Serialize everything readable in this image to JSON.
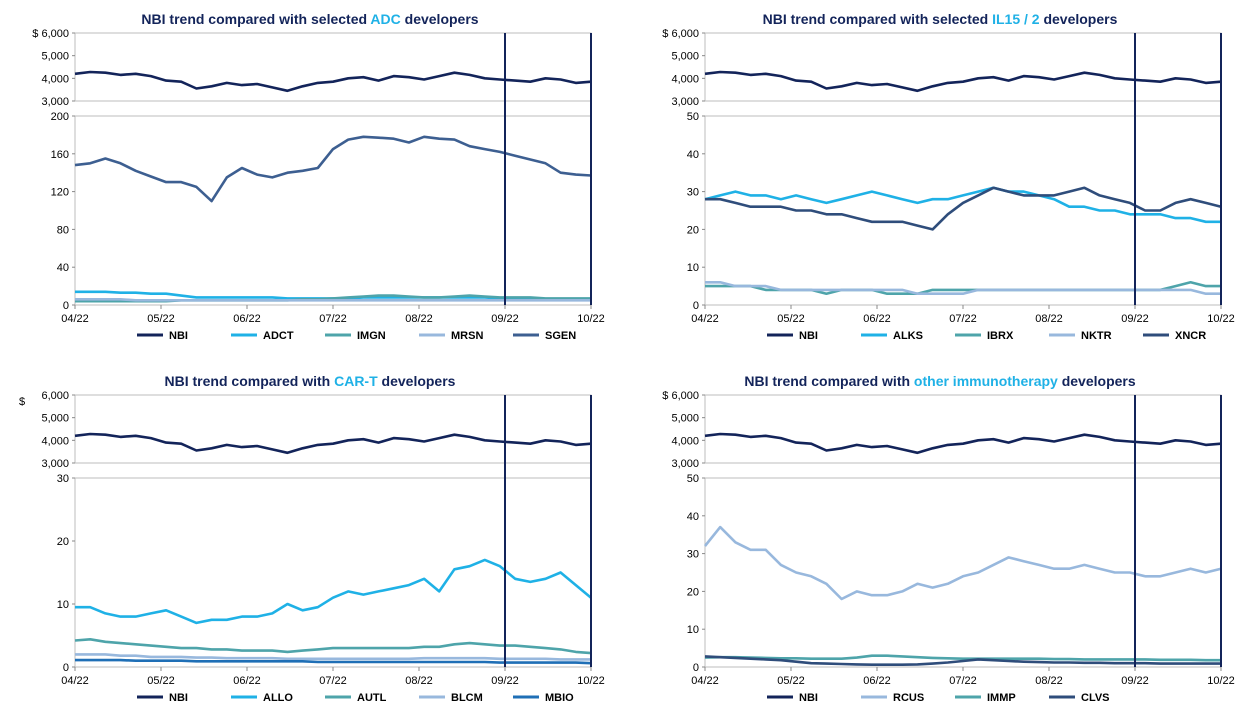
{
  "colors": {
    "nbi": "#13245a",
    "vline": "#13245a",
    "highlight": "#1fb1e6"
  },
  "chart_data": [
    {
      "id": "adc",
      "type": "line",
      "title_pre": "NBI trend compared with selected ",
      "title_hl": "ADC",
      "title_post": " developers",
      "x_ticks": [
        "04/22",
        "05/22",
        "06/22",
        "07/22",
        "08/22",
        "09/22",
        "10/22"
      ],
      "vlines": [
        "09/22",
        "10/22"
      ],
      "top_panel": {
        "ylim": [
          3000,
          6000
        ],
        "y_ticks": [
          "$ 6,000",
          "5,000",
          "4,000",
          "3,000"
        ],
        "series": [
          {
            "name": "NBI",
            "color": "#13245a",
            "values": [
              4200,
              4280,
              4250,
              4150,
              4200,
              4100,
              3900,
              3850,
              3550,
              3650,
              3800,
              3700,
              3750,
              3600,
              3450,
              3650,
              3800,
              3850,
              4000,
              4050,
              3900,
              4100,
              4050,
              3950,
              4100,
              4250,
              4150,
              4000,
              3950,
              3900,
              3850,
              4000,
              3950,
              3800,
              3850
            ]
          }
        ]
      },
      "bottom_panel": {
        "ylim": [
          0,
          200
        ],
        "y_ticks": [
          "200",
          "160",
          "120",
          "80",
          "40",
          "0"
        ],
        "series": [
          {
            "name": "ADCT",
            "color": "#1fb1e6",
            "values": [
              14,
              14,
              14,
              13,
              13,
              12,
              12,
              10,
              8,
              8,
              8,
              8,
              8,
              8,
              7,
              7,
              7,
              7,
              7,
              8,
              8,
              8,
              8,
              8,
              8,
              8,
              8,
              8,
              7,
              7,
              7,
              6,
              6,
              6,
              6
            ]
          },
          {
            "name": "IMGN",
            "color": "#4ea4aa",
            "values": [
              4,
              4,
              4,
              4,
              4,
              4,
              4,
              5,
              5,
              5,
              5,
              5,
              5,
              5,
              5,
              6,
              6,
              7,
              8,
              9,
              10,
              10,
              9,
              8,
              8,
              9,
              10,
              9,
              8,
              8,
              8,
              7,
              7,
              7,
              7
            ]
          },
          {
            "name": "MRSN",
            "color": "#98b8dd",
            "values": [
              6,
              6,
              6,
              6,
              5,
              5,
              5,
              5,
              5,
              5,
              5,
              5,
              5,
              5,
              5,
              5,
              5,
              5,
              5,
              5,
              5,
              5,
              5,
              5,
              5,
              5,
              5,
              5,
              5,
              5,
              5,
              5,
              5,
              5,
              5
            ]
          },
          {
            "name": "SGEN",
            "color": "#3d5f91",
            "values": [
              148,
              150,
              155,
              150,
              142,
              136,
              130,
              130,
              125,
              110,
              135,
              145,
              138,
              135,
              140,
              142,
              145,
              165,
              175,
              178,
              177,
              176,
              172,
              178,
              176,
              175,
              168,
              165,
              162,
              158,
              154,
              150,
              140,
              138,
              137
            ]
          }
        ]
      },
      "legend": [
        "NBI",
        "ADCT",
        "IMGN",
        "MRSN",
        "SGEN"
      ]
    },
    {
      "id": "il15",
      "type": "line",
      "title_pre": "NBI trend compared with selected ",
      "title_hl": "IL15 / 2",
      "title_post": " developers",
      "x_ticks": [
        "04/22",
        "05/22",
        "06/22",
        "07/22",
        "08/22",
        "09/22",
        "10/22"
      ],
      "vlines": [
        "09/22",
        "10/22"
      ],
      "top_panel": {
        "ylim": [
          3000,
          6000
        ],
        "y_ticks": [
          "$ 6,000",
          "5,000",
          "4,000",
          "3,000"
        ],
        "series": [
          {
            "name": "NBI",
            "color": "#13245a",
            "values": [
              4200,
              4280,
              4250,
              4150,
              4200,
              4100,
              3900,
              3850,
              3550,
              3650,
              3800,
              3700,
              3750,
              3600,
              3450,
              3650,
              3800,
              3850,
              4000,
              4050,
              3900,
              4100,
              4050,
              3950,
              4100,
              4250,
              4150,
              4000,
              3950,
              3900,
              3850,
              4000,
              3950,
              3800,
              3850
            ]
          }
        ]
      },
      "bottom_panel": {
        "ylim": [
          0,
          50
        ],
        "y_ticks": [
          "50",
          "40",
          "30",
          "20",
          "10",
          "0"
        ],
        "series": [
          {
            "name": "ALKS",
            "color": "#1fb1e6",
            "values": [
              28,
              29,
              30,
              29,
              29,
              28,
              29,
              28,
              27,
              28,
              29,
              30,
              29,
              28,
              27,
              28,
              28,
              29,
              30,
              31,
              30,
              30,
              29,
              28,
              26,
              26,
              25,
              25,
              24,
              24,
              24,
              23,
              23,
              22,
              22
            ]
          },
          {
            "name": "IBRX",
            "color": "#4ea4aa",
            "values": [
              5,
              5,
              5,
              5,
              4,
              4,
              4,
              4,
              3,
              4,
              4,
              4,
              3,
              3,
              3,
              4,
              4,
              4,
              4,
              4,
              4,
              4,
              4,
              4,
              4,
              4,
              4,
              4,
              4,
              4,
              4,
              5,
              6,
              5,
              5
            ]
          },
          {
            "name": "NKTR",
            "color": "#98b8dd",
            "values": [
              6,
              6,
              5,
              5,
              5,
              4,
              4,
              4,
              4,
              4,
              4,
              4,
              4,
              4,
              3,
              3,
              3,
              3,
              4,
              4,
              4,
              4,
              4,
              4,
              4,
              4,
              4,
              4,
              4,
              4,
              4,
              4,
              4,
              3,
              3
            ]
          },
          {
            "name": "XNCR",
            "color": "#2f4d7b",
            "values": [
              28,
              28,
              27,
              26,
              26,
              26,
              25,
              25,
              24,
              24,
              23,
              22,
              22,
              22,
              21,
              20,
              24,
              27,
              29,
              31,
              30,
              29,
              29,
              29,
              30,
              31,
              29,
              28,
              27,
              25,
              25,
              27,
              28,
              27,
              26
            ]
          }
        ]
      },
      "legend": [
        "NBI",
        "ALKS",
        "IBRX",
        "NKTR",
        "XNCR"
      ]
    },
    {
      "id": "cart",
      "type": "line",
      "title_pre": "NBI trend compared with ",
      "title_hl": "CAR-T",
      "title_post": " developers",
      "x_ticks": [
        "04/22",
        "05/22",
        "06/22",
        "07/22",
        "08/22",
        "09/22",
        "10/22"
      ],
      "vlines": [
        "09/22",
        "10/22"
      ],
      "top_panel": {
        "ylim": [
          3000,
          6000
        ],
        "y_ticks": [
          "6,000",
          "5,000",
          "4,000",
          "3,000"
        ],
        "y_unit": "$",
        "series": [
          {
            "name": "NBI",
            "color": "#13245a",
            "values": [
              4200,
              4280,
              4250,
              4150,
              4200,
              4100,
              3900,
              3850,
              3550,
              3650,
              3800,
              3700,
              3750,
              3600,
              3450,
              3650,
              3800,
              3850,
              4000,
              4050,
              3900,
              4100,
              4050,
              3950,
              4100,
              4250,
              4150,
              4000,
              3950,
              3900,
              3850,
              4000,
              3950,
              3800,
              3850
            ]
          }
        ]
      },
      "bottom_panel": {
        "ylim": [
          0,
          30
        ],
        "y_ticks": [
          "30",
          "20",
          "10",
          "0"
        ],
        "series": [
          {
            "name": "ALLO",
            "color": "#1fb1e6",
            "values": [
              9.5,
              9.5,
              8.5,
              8,
              8,
              8.5,
              9,
              8,
              7,
              7.5,
              7.5,
              8,
              8,
              8.5,
              10,
              9,
              9.5,
              11,
              12,
              11.5,
              12,
              12.5,
              13,
              14,
              12,
              15.5,
              16,
              17,
              16,
              14,
              13.5,
              14,
              15,
              13,
              11
            ]
          },
          {
            "name": "AUTL",
            "color": "#4ea4aa",
            "values": [
              4.2,
              4.4,
              4,
              3.8,
              3.6,
              3.4,
              3.2,
              3,
              3,
              2.8,
              2.8,
              2.6,
              2.6,
              2.6,
              2.4,
              2.6,
              2.8,
              3,
              3,
              3,
              3,
              3,
              3,
              3.2,
              3.2,
              3.6,
              3.8,
              3.6,
              3.4,
              3.4,
              3.2,
              3,
              2.8,
              2.4,
              2.2
            ]
          },
          {
            "name": "BLCM",
            "color": "#98b8dd",
            "values": [
              2,
              2,
              2,
              1.8,
              1.8,
              1.6,
              1.6,
              1.6,
              1.5,
              1.5,
              1.4,
              1.4,
              1.4,
              1.4,
              1.3,
              1.3,
              1.3,
              1.3,
              1.3,
              1.3,
              1.3,
              1.3,
              1.3,
              1.4,
              1.4,
              1.4,
              1.4,
              1.4,
              1.3,
              1.3,
              1.3,
              1.3,
              1.2,
              1.2,
              1.2
            ]
          },
          {
            "name": "MBIO",
            "color": "#1f6fb6",
            "values": [
              1.1,
              1.1,
              1.1,
              1.1,
              1,
              1,
              1,
              1,
              0.9,
              0.9,
              0.9,
              0.9,
              0.9,
              0.9,
              0.9,
              0.9,
              0.8,
              0.8,
              0.8,
              0.8,
              0.8,
              0.8,
              0.8,
              0.8,
              0.8,
              0.8,
              0.8,
              0.8,
              0.7,
              0.7,
              0.7,
              0.7,
              0.7,
              0.7,
              0.6
            ]
          }
        ]
      },
      "legend": [
        "NBI",
        "ALLO",
        "AUTL",
        "BLCM",
        "MBIO"
      ]
    },
    {
      "id": "immuno",
      "type": "line",
      "title_pre": "NBI trend compared with ",
      "title_hl": "other immunotherapy",
      "title_post": " developers",
      "x_ticks": [
        "04/22",
        "05/22",
        "06/22",
        "07/22",
        "08/22",
        "09/22",
        "10/22"
      ],
      "vlines": [
        "09/22",
        "10/22"
      ],
      "top_panel": {
        "ylim": [
          3000,
          6000
        ],
        "y_ticks": [
          "$ 6,000",
          "5,000",
          "4,000",
          "3,000"
        ],
        "series": [
          {
            "name": "NBI",
            "color": "#13245a",
            "values": [
              4200,
              4280,
              4250,
              4150,
              4200,
              4100,
              3900,
              3850,
              3550,
              3650,
              3800,
              3700,
              3750,
              3600,
              3450,
              3650,
              3800,
              3850,
              4000,
              4050,
              3900,
              4100,
              4050,
              3950,
              4100,
              4250,
              4150,
              4000,
              3950,
              3900,
              3850,
              4000,
              3950,
              3800,
              3850
            ]
          }
        ]
      },
      "bottom_panel": {
        "ylim": [
          0,
          50
        ],
        "y_ticks": [
          "50",
          "40",
          "30",
          "20",
          "10",
          "0"
        ],
        "series": [
          {
            "name": "RCUS",
            "color": "#98b8dd",
            "values": [
              32,
              37,
              33,
              31,
              31,
              27,
              25,
              24,
              22,
              18,
              20,
              19,
              19,
              20,
              22,
              21,
              22,
              24,
              25,
              27,
              29,
              28,
              27,
              26,
              26,
              27,
              26,
              25,
              25,
              24,
              24,
              25,
              26,
              25,
              26
            ]
          },
          {
            "name": "IMMP",
            "color": "#4ea4aa",
            "values": [
              2.5,
              2.6,
              2.6,
              2.5,
              2.4,
              2.3,
              2.3,
              2.2,
              2.2,
              2.2,
              2.5,
              3,
              3,
              2.8,
              2.6,
              2.4,
              2.3,
              2.2,
              2.2,
              2.2,
              2.2,
              2.2,
              2.2,
              2.1,
              2.1,
              2,
              2,
              2,
              2,
              2,
              1.9,
              1.9,
              1.9,
              1.8,
              1.8
            ]
          },
          {
            "name": "CLVS",
            "color": "#2f4d7b",
            "values": [
              2.8,
              2.6,
              2.4,
              2.2,
              2,
              1.8,
              1.4,
              1,
              0.9,
              0.8,
              0.7,
              0.6,
              0.6,
              0.6,
              0.7,
              0.9,
              1.2,
              1.6,
              2,
              1.8,
              1.6,
              1.4,
              1.3,
              1.2,
              1.2,
              1.1,
              1.1,
              1,
              1,
              1,
              0.9,
              0.9,
              0.9,
              0.9,
              0.9
            ]
          }
        ]
      },
      "legend": [
        "NBI",
        "RCUS",
        "IMMP",
        "CLVS"
      ]
    }
  ]
}
